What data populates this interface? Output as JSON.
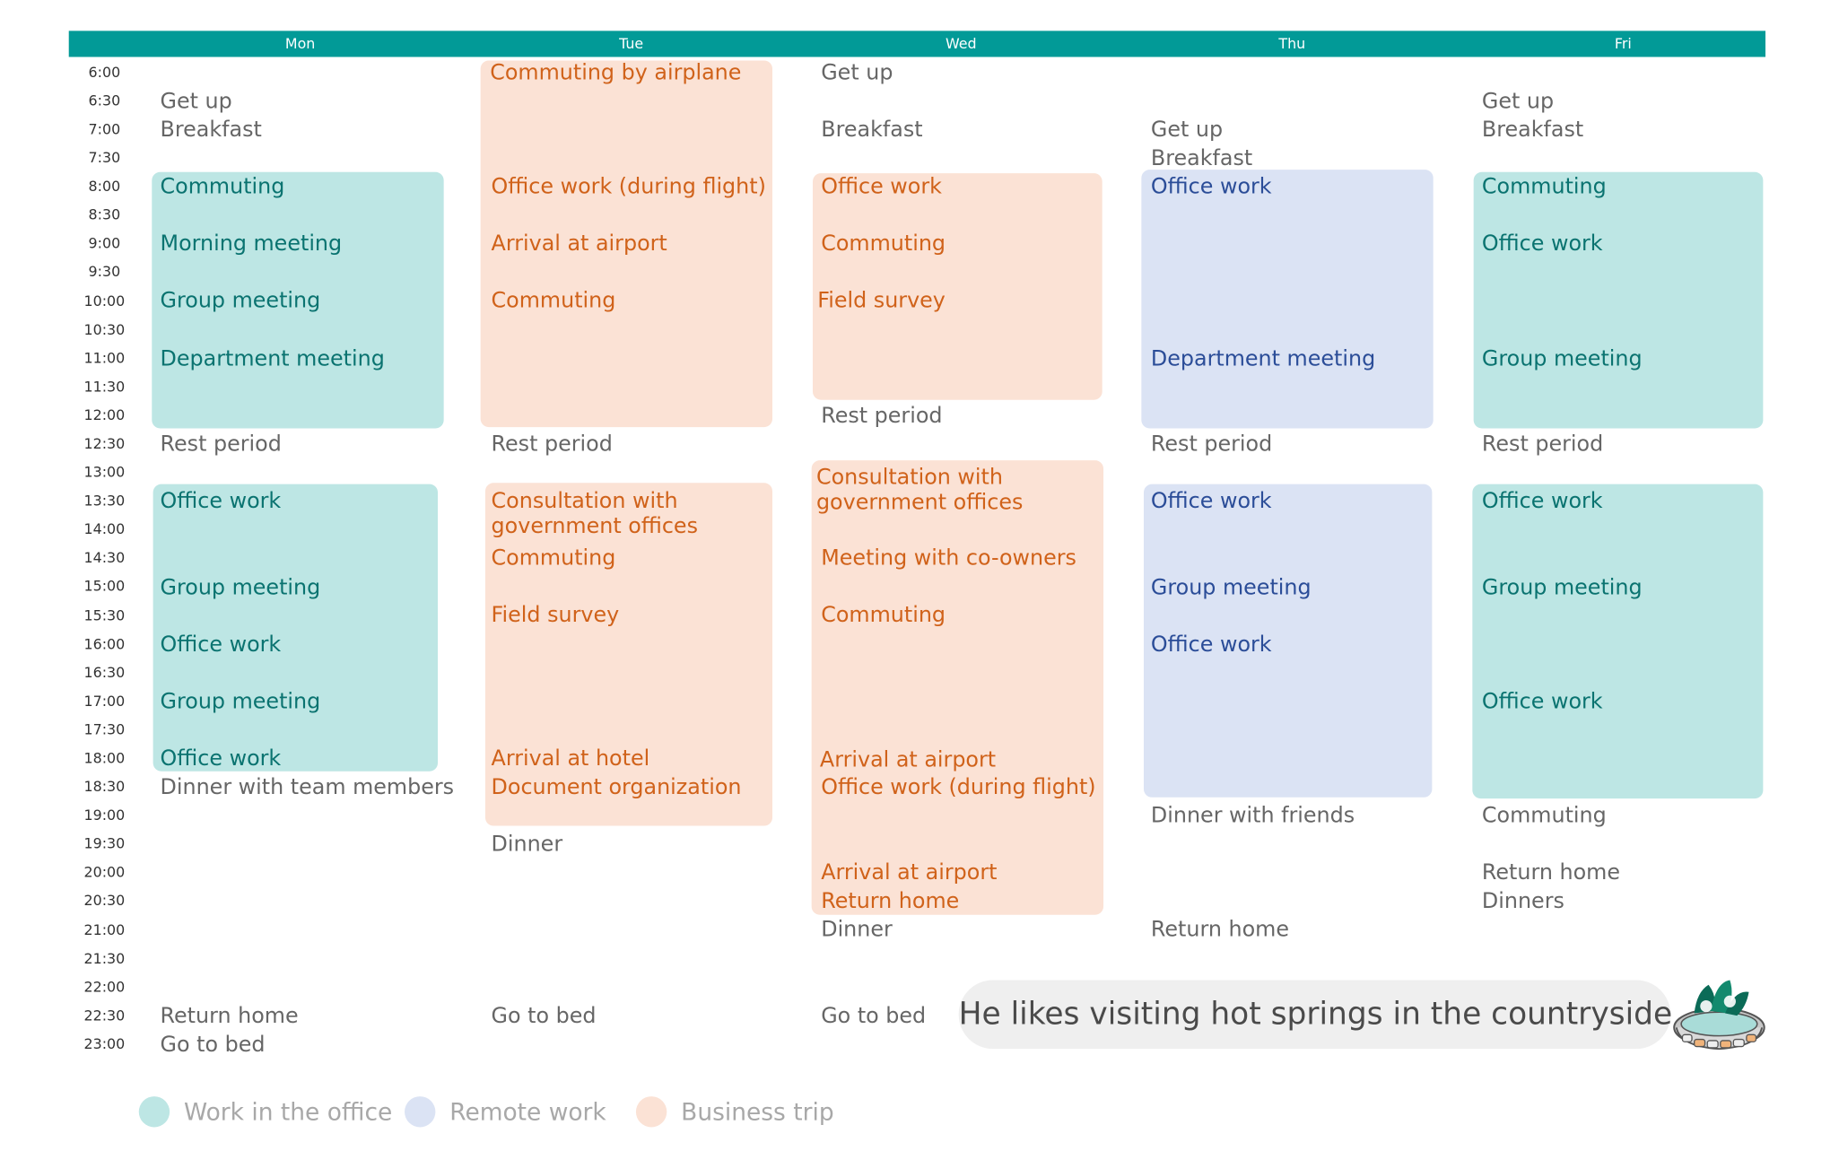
{
  "days": [
    "Mon",
    "Tue",
    "Wed",
    "Thu",
    "Fri"
  ],
  "times": [
    "6:00",
    "6:30",
    "7:00",
    "7:30",
    "8:00",
    "8:30",
    "9:00",
    "9:30",
    "10:00",
    "10:30",
    "11:00",
    "11:30",
    "12:00",
    "12:30",
    "13:00",
    "13:30",
    "14:00",
    "14:30",
    "15:00",
    "15:30",
    "16:00",
    "16:30",
    "17:00",
    "17:30",
    "18:00",
    "18:30",
    "19:00",
    "19:30",
    "20:00",
    "20:30",
    "21:00",
    "21:30",
    "22:00",
    "22:30",
    "23:00"
  ],
  "mon": {
    "get_up": "Get up",
    "breakfast": "Breakfast",
    "commuting": "Commuting",
    "morning_meeting": "Morning meeting",
    "group_meeting_1": "Group meeting",
    "department_meeting": "Department meeting",
    "rest_period": "Rest period",
    "office_work_1": "Office work",
    "group_meeting_2": "Group meeting",
    "office_work_2": "Office work",
    "group_meeting_3": "Group meeting",
    "office_work_3": "Office work",
    "dinner": "Dinner with team members",
    "return_home": "Return home",
    "go_to_bed": "Go to bed"
  },
  "tue": {
    "commuting_airplane": "Commuting by airplane",
    "office_work_flight": "Office work (during flight)",
    "arrival_airport": "Arrival at airport",
    "commuting_1": "Commuting",
    "rest_period": "Rest period",
    "consultation": "Consultation with government offices",
    "commuting_2": "Commuting",
    "field_survey": "Field survey",
    "arrival_hotel": "Arrival at hotel",
    "document_org": "Document organization",
    "dinner": "Dinner",
    "go_to_bed": "Go to bed"
  },
  "wed": {
    "get_up": "Get up",
    "breakfast": "Breakfast",
    "office_work": "Office work",
    "commuting_1": "Commuting",
    "field_survey": "Field survey",
    "rest_period": "Rest period",
    "consultation": "Consultation with government offices",
    "meeting_coowners": "Meeting with co-owners",
    "commuting_2": "Commuting",
    "arrival_airport_1": "Arrival at airport",
    "office_work_flight": "Office work (during flight)",
    "arrival_airport_2": "Arrival at airport",
    "return_home": "Return home",
    "dinner": "Dinner",
    "go_to_bed": "Go to bed"
  },
  "thu": {
    "get_up": "Get up",
    "breakfast": "Breakfast",
    "office_work_1": "Office work",
    "department_meeting": "Department meeting",
    "rest_period": "Rest period",
    "office_work_2": "Office work",
    "group_meeting": "Group meeting",
    "office_work_3": "Office work",
    "dinner": "Dinner with friends",
    "return_home": "Return home"
  },
  "fri": {
    "get_up": "Get up",
    "breakfast": "Breakfast",
    "commuting_1": "Commuting",
    "office_work_1": "Office work",
    "group_meeting_1": "Group meeting",
    "rest_period": "Rest period",
    "office_work_2": "Office work",
    "group_meeting_2": "Group meeting",
    "office_work_3": "Office work",
    "commuting_2": "Commuting",
    "return_home": "Return home",
    "dinners": "Dinners"
  },
  "note": "He likes visiting hot springs in the countryside",
  "legend": [
    {
      "label": "Work in the office",
      "color": "#bde6e4"
    },
    {
      "label": "Remote work",
      "color": "#dbe3f4"
    },
    {
      "label": "Business trip",
      "color": "#fbe2d5"
    }
  ],
  "colors": {
    "header": "#029a97",
    "office": "#bde6e4",
    "remote": "#dbe3f4",
    "trip": "#fbe2d5"
  },
  "icons": {
    "illustration": "hot-spring-icon"
  }
}
